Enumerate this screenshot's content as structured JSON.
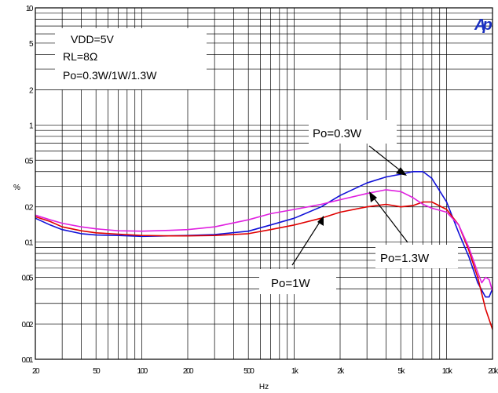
{
  "chart_data": {
    "type": "line",
    "title": "",
    "xlabel": "Hz",
    "ylabel": "%",
    "x_scale": "log",
    "y_scale": "log",
    "xlim": [
      20,
      20000
    ],
    "ylim": [
      0.01,
      10
    ],
    "grid": true,
    "x_ticks": [
      {
        "value": 20,
        "label": "20"
      },
      {
        "value": 50,
        "label": "50"
      },
      {
        "value": 100,
        "label": "100"
      },
      {
        "value": 200,
        "label": "200"
      },
      {
        "value": 500,
        "label": "500"
      },
      {
        "value": 1000,
        "label": "1k"
      },
      {
        "value": 2000,
        "label": "2k"
      },
      {
        "value": 5000,
        "label": "5k"
      },
      {
        "value": 10000,
        "label": "10k"
      },
      {
        "value": 20000,
        "label": "20k"
      }
    ],
    "y_ticks": [
      {
        "value": 10,
        "label": "10"
      },
      {
        "value": 5,
        "label": "5"
      },
      {
        "value": 2,
        "label": "2"
      },
      {
        "value": 1,
        "label": "1"
      },
      {
        "value": 0.5,
        "label": "0.5"
      },
      {
        "value": 0.2,
        "label": "0.2"
      },
      {
        "value": 0.1,
        "label": "0.1"
      },
      {
        "value": 0.05,
        "label": "0.05"
      },
      {
        "value": 0.02,
        "label": "0.02"
      },
      {
        "value": 0.01,
        "label": "0.01"
      }
    ],
    "conditions": [
      "VDD=5V",
      "RL=8Ω",
      "Po=0.3W/1W/1.3W"
    ],
    "logo": "Ap",
    "series": [
      {
        "color": "#1010d8",
        "x": [
          20,
          25,
          30,
          40,
          50,
          70,
          100,
          150,
          200,
          300,
          500,
          700,
          1000,
          1500,
          2000,
          3000,
          4000,
          5000,
          6000,
          7000,
          8000,
          10000,
          12000,
          14000,
          16000,
          18000,
          19000,
          20000
        ],
        "y": [
          0.16,
          0.14,
          0.128,
          0.118,
          0.115,
          0.114,
          0.112,
          0.113,
          0.114,
          0.116,
          0.124,
          0.14,
          0.16,
          0.2,
          0.25,
          0.32,
          0.36,
          0.38,
          0.4,
          0.4,
          0.35,
          0.22,
          0.12,
          0.075,
          0.045,
          0.034,
          0.034,
          0.04
        ]
      },
      {
        "color": "#e00000",
        "x": [
          20,
          25,
          30,
          40,
          50,
          70,
          100,
          150,
          200,
          300,
          500,
          700,
          1000,
          1500,
          2000,
          3000,
          4000,
          5000,
          6000,
          7000,
          8000,
          10000,
          12000,
          14000,
          16000,
          18000,
          20000
        ],
        "y": [
          0.165,
          0.15,
          0.135,
          0.125,
          0.12,
          0.117,
          0.114,
          0.113,
          0.113,
          0.114,
          0.118,
          0.128,
          0.14,
          0.16,
          0.18,
          0.2,
          0.21,
          0.2,
          0.205,
          0.22,
          0.22,
          0.19,
          0.14,
          0.085,
          0.05,
          0.027,
          0.018
        ]
      },
      {
        "color": "#e020e0",
        "x": [
          20,
          25,
          30,
          40,
          50,
          70,
          100,
          150,
          200,
          300,
          500,
          700,
          1000,
          1500,
          2000,
          3000,
          4000,
          5000,
          6000,
          7000,
          8000,
          10000,
          12000,
          14000,
          16000,
          17000,
          18000,
          19000,
          20000
        ],
        "y": [
          0.17,
          0.155,
          0.145,
          0.135,
          0.13,
          0.125,
          0.124,
          0.126,
          0.128,
          0.135,
          0.155,
          0.175,
          0.19,
          0.21,
          0.23,
          0.26,
          0.28,
          0.27,
          0.24,
          0.21,
          0.195,
          0.18,
          0.14,
          0.09,
          0.055,
          0.045,
          0.05,
          0.048,
          0.038
        ]
      }
    ],
    "annotations": [
      {
        "text": "Po=0.3W",
        "target_x": 7000,
        "target_y": 0.4
      },
      {
        "text": "Po=1.3W",
        "target_x": 4000,
        "target_y": 0.28
      },
      {
        "text": "Po=1W",
        "target_x": 1800,
        "target_y": 0.18
      }
    ]
  }
}
